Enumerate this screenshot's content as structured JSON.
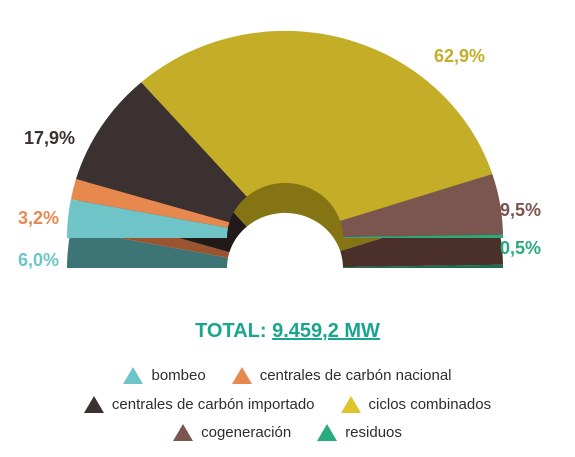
{
  "chart_data": {
    "type": "pie",
    "subtype": "semi-donut-3d",
    "title": "",
    "categories": [
      "bombeo",
      "centrales de carbón nacional",
      "centrales de carbón importado",
      "ciclos combinados",
      "cogeneración",
      "residuos"
    ],
    "values": [
      6.0,
      3.2,
      17.9,
      62.9,
      9.5,
      0.5
    ],
    "labels": [
      "6,0%",
      "3,2%",
      "17,9%",
      "62,9%",
      "9,5%",
      "0,5%"
    ],
    "colors": [
      "#6ec4c7",
      "#e7884f",
      "#3b3130",
      "#c4ae28",
      "#7a564e",
      "#2aab7e"
    ],
    "side_colors": [
      "#3d7476",
      "#9a5530",
      "#211a19",
      "#857414",
      "#4b302a",
      "#1b6e50"
    ],
    "label_colors": [
      "#6ec4c7",
      "#e7884f",
      "#3b3130",
      "#c4ae28",
      "#7a564e",
      "#2aab7e"
    ],
    "legend_position": "bottom"
  },
  "total": {
    "prefix": "TOTAL: ",
    "value": "9.459,2 MW"
  },
  "legend": [
    [
      "bombeo",
      "centrales de carbón nacional"
    ],
    [
      "centrales de carbón importado",
      "ciclos combinados"
    ],
    [
      "cogeneración",
      "residuos"
    ]
  ]
}
